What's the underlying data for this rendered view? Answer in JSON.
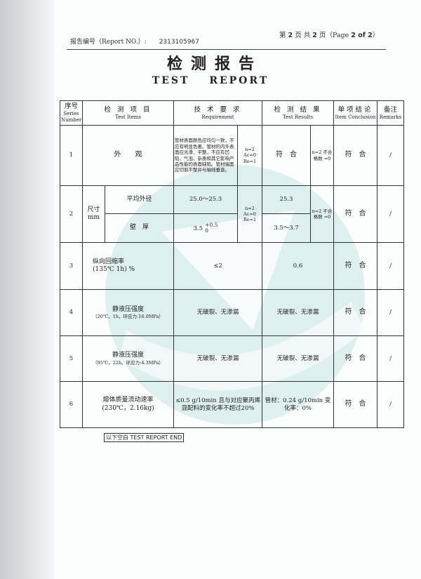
{
  "header": {
    "report_no_label": "报告编号（Report NO.）:",
    "report_no": "2313105967",
    "page_cn_prefix": "第",
    "page_current": "2",
    "page_cn_mid": "页 共",
    "page_total": "2",
    "page_cn_suffix": "页（Page",
    "page_en": "2 of 2",
    "page_close": "）"
  },
  "title": {
    "cn": "检测报告",
    "en": "TEST REPORT"
  },
  "table": {
    "headers": {
      "seq_cn": "序号",
      "seq_en": "Series Number",
      "item_cn": "检 测 项 目",
      "item_en": "Test Items",
      "req_cn": "技 术 要 求",
      "req_en": "Requirement",
      "res_cn": "检 测 结 果",
      "res_en": "Test Results",
      "concl_cn": "单项结论",
      "concl_en": "Item Conclusion",
      "rem_cn": "备注",
      "rem_en": "Remarks"
    },
    "rows": [
      {
        "no": "1",
        "item": "外　　观",
        "req": "管材表面颜色应均匀一致，不应有明显色差。管材的内外表面应光滑、平整，不应有凹陷、气泡、杂质和其它影响产品性能的表面缺陷。管材端面应切割平整并与轴线垂直。",
        "req_sample": "n=2 Ac=0 Re=1",
        "result": "符　合",
        "result_sample": "n=2 不合格数 =0",
        "conclusion": "符　合",
        "remarks": "/"
      },
      {
        "no": "2",
        "item_group": "尺寸 mm",
        "sub": [
          {
            "item": "平均外径",
            "req": "25.0～25.3",
            "result": "25.3"
          },
          {
            "item": "壁　厚",
            "req": "3.5",
            "req_tol_upper": "+0.5",
            "req_tol_lower": "0",
            "result": "3.5～3.7"
          }
        ],
        "req_sample": "n=2 Ac=0 Re=1",
        "result_sample": "n=2 不合格数 =0",
        "conclusion": "符　合",
        "remarks": "/"
      },
      {
        "no": "3",
        "item": "纵向回缩率",
        "item_cond": "(135℃ 1h) %",
        "req": "≤2",
        "result": "0.6",
        "conclusion": "符　合",
        "remarks": "/"
      },
      {
        "no": "4",
        "item": "静液压强度",
        "item_cond": "（20℃，1h，环应力:16.0MPa）",
        "req": "无破裂、无渗漏",
        "result": "无破裂、无渗漏",
        "conclusion": "符　合",
        "remarks": "/"
      },
      {
        "no": "5",
        "item": "静液压强度",
        "item_cond": "（95℃，22h，环应力:4.3MPa）",
        "req": "无破裂、无渗漏",
        "result": "无破裂、无渗漏",
        "conclusion": "符　合",
        "remarks": "/"
      },
      {
        "no": "6",
        "item": "熔体质量流动速率",
        "item_cond": "(230℃，2.16kg)",
        "req": "≤0.5 g/10min 且与对应聚丙烯混配料的变化率不超过20%",
        "result": "管材：0.24 g/10min 变化率：0%",
        "conclusion": "符　合",
        "remarks": "/"
      }
    ]
  },
  "end_note": "以下空白 TEST REPORT END",
  "colors": {
    "watermark": "#cfe6e6",
    "ink": "#222222"
  }
}
